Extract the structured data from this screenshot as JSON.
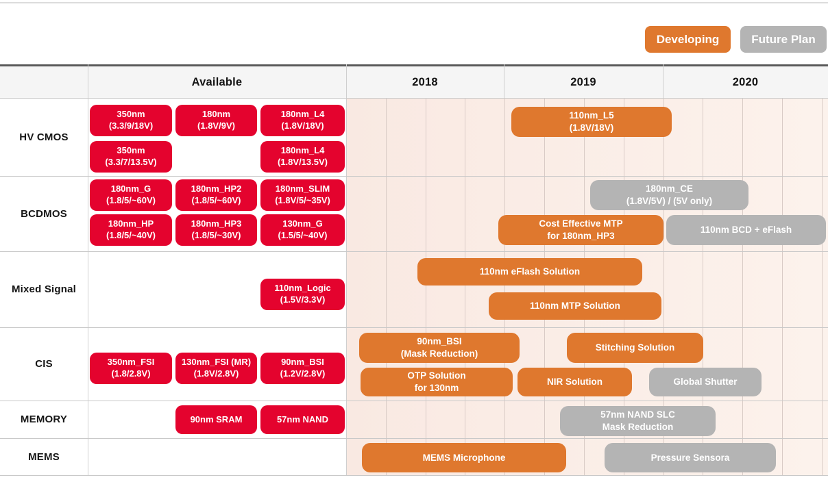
{
  "legend": [
    {
      "label": "Developing",
      "status": "developing"
    },
    {
      "label": "Future Plan",
      "status": "future"
    }
  ],
  "colors": {
    "available": "#E4032E",
    "developing": "#DF782E",
    "future": "#B4B4B4",
    "timeline_bg_left": "#F9E9E2",
    "timeline_bg_right": "#FCF2EC"
  },
  "header": {
    "available_label": "Available",
    "years": [
      "2018",
      "2019",
      "2020"
    ]
  },
  "chart_data": {
    "type": "bar",
    "subtype": "technology-roadmap-gantt",
    "x_axis": {
      "ticks": [
        "2018",
        "2019",
        "2020"
      ],
      "range": [
        2018,
        2021
      ],
      "gridlines": "quarterly"
    },
    "legend_entries": [
      "Developing",
      "Future Plan"
    ],
    "categories": [
      "HV CMOS",
      "BCDMOS",
      "Mixed Signal",
      "CIS",
      "MEMORY",
      "MEMS"
    ],
    "rows": [
      {
        "label": "HV CMOS",
        "available": [
          {
            "lines": [
              "350nm",
              "(3.3/9/18V)"
            ],
            "row": 0,
            "col": 0
          },
          {
            "lines": [
              "180nm",
              "(1.8V/9V)"
            ],
            "row": 0,
            "col": 1
          },
          {
            "lines": [
              "180nm_L4",
              "(1.8V/18V)"
            ],
            "row": 0,
            "col": 2
          },
          {
            "lines": [
              "350nm",
              "(3.3/7/13.5V)"
            ],
            "row": 1,
            "col": 0
          },
          {
            "lines": [
              "180nm_L4",
              "(1.8V/13.5V)"
            ],
            "row": 1,
            "col": 2
          }
        ],
        "timeline": [
          {
            "lines": [
              "110nm_L5",
              "(1.8V/18V)"
            ],
            "status": "developing",
            "lane": 0,
            "from": 2019.04,
            "to": 2020.05
          }
        ]
      },
      {
        "label": "BCDMOS",
        "available": [
          {
            "lines": [
              "180nm_G",
              "(1.8/5/~60V)"
            ],
            "row": 0,
            "col": 0
          },
          {
            "lines": [
              "180nm_HP2",
              "(1.8/5/~60V)"
            ],
            "row": 0,
            "col": 1
          },
          {
            "lines": [
              "180nm_SLIM",
              "(1.8V/5/~35V)"
            ],
            "row": 0,
            "col": 2
          },
          {
            "lines": [
              "180nm_HP",
              "(1.8/5/~40V)"
            ],
            "row": 1,
            "col": 0
          },
          {
            "lines": [
              "180nm_HP3",
              "(1.8/5/~30V)"
            ],
            "row": 1,
            "col": 1
          },
          {
            "lines": [
              "130nm_G",
              "(1.5/5/~40V)"
            ],
            "row": 1,
            "col": 2
          }
        ],
        "timeline": [
          {
            "lines": [
              "180nm_CE",
              "(1.8V/5V) / (5V only)"
            ],
            "status": "future",
            "lane": 0,
            "from": 2019.54,
            "to": 2020.54
          },
          {
            "lines": [
              "Cost Effective MTP",
              "for 180nm_HP3"
            ],
            "status": "developing",
            "lane": 1,
            "from": 2018.96,
            "to": 2020.0
          },
          {
            "lines": [
              "110nm BCD + eFlash"
            ],
            "status": "future",
            "lane": 1,
            "from": 2020.02,
            "to": 2021.03
          }
        ]
      },
      {
        "label": "Mixed Signal",
        "available": [
          {
            "lines": [
              "110nm_Logic",
              "(1.5V/3.3V)"
            ],
            "row": 0,
            "col": 2
          }
        ],
        "timeline": [
          {
            "lines": [
              "110nm eFlash Solution"
            ],
            "status": "developing",
            "lane": 0,
            "from": 2018.45,
            "to": 2019.87
          },
          {
            "lines": [
              "110nm MTP Solution"
            ],
            "status": "developing",
            "lane": 1,
            "from": 2018.9,
            "to": 2019.99
          }
        ]
      },
      {
        "label": "CIS",
        "available": [
          {
            "lines": [
              "350nm_FSI",
              "(1.8/2.8V)"
            ],
            "row": 0,
            "col": 0
          },
          {
            "lines": [
              "130nm_FSI (MR)",
              "(1.8V/2.8V)"
            ],
            "row": 0,
            "col": 1
          },
          {
            "lines": [
              "90nm_BSI",
              "(1.2V/2.8V)"
            ],
            "row": 0,
            "col": 2
          }
        ],
        "timeline": [
          {
            "lines": [
              "90nm_BSI",
              "(Mask Reduction)"
            ],
            "status": "developing",
            "lane": 0,
            "from": 2018.08,
            "to": 2019.09
          },
          {
            "lines": [
              "Stitching Solution"
            ],
            "status": "developing",
            "lane": 0,
            "from": 2019.39,
            "to": 2020.25
          },
          {
            "lines": [
              "OTP Solution",
              "for 130nm"
            ],
            "status": "developing",
            "lane": 1,
            "from": 2018.09,
            "to": 2019.05
          },
          {
            "lines": [
              "NIR Solution"
            ],
            "status": "developing",
            "lane": 1,
            "from": 2019.08,
            "to": 2019.8
          },
          {
            "lines": [
              "Global Shutter"
            ],
            "status": "future",
            "lane": 1,
            "from": 2019.91,
            "to": 2020.62
          }
        ]
      },
      {
        "label": "MEMORY",
        "available": [
          {
            "lines": [
              "90nm SRAM"
            ],
            "row": 0,
            "col": 1
          },
          {
            "lines": [
              "57nm NAND"
            ],
            "row": 0,
            "col": 2
          }
        ],
        "timeline": [
          {
            "lines": [
              "57nm NAND SLC",
              "Mask Reduction"
            ],
            "status": "future",
            "lane": 0,
            "from": 2019.35,
            "to": 2020.33
          }
        ]
      },
      {
        "label": "MEMS",
        "available": [],
        "timeline": [
          {
            "lines": [
              "MEMS Microphone"
            ],
            "status": "developing",
            "lane": 0,
            "from": 2018.1,
            "to": 2019.39
          },
          {
            "lines": [
              "Pressure Sensora"
            ],
            "status": "future",
            "lane": 0,
            "from": 2019.63,
            "to": 2020.71
          }
        ]
      }
    ]
  }
}
